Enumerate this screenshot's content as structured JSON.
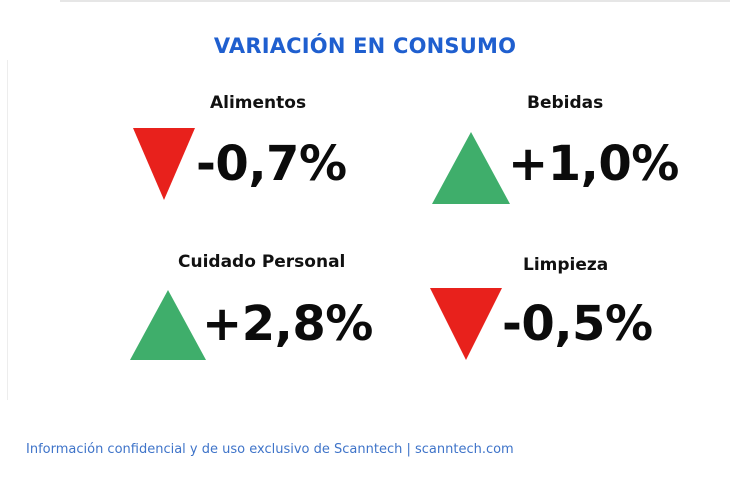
{
  "title": "VARIACIÓN EN CONSUMO",
  "metrics": [
    {
      "category": "Alimentos",
      "value": "-0,7%",
      "direction": "down",
      "color": "#e8211c"
    },
    {
      "category": "Bebidas",
      "value": "+1,0%",
      "direction": "up",
      "color": "#3fae6b"
    },
    {
      "category": "Cuidado Personal",
      "value": "+2,8%",
      "direction": "up",
      "color": "#3fae6b"
    },
    {
      "category": "Limpieza",
      "value": "-0,5%",
      "direction": "down",
      "color": "#e8211c"
    }
  ],
  "footer": "Información confidencial y de uso exclusivo de Scanntech | scanntech.com"
}
